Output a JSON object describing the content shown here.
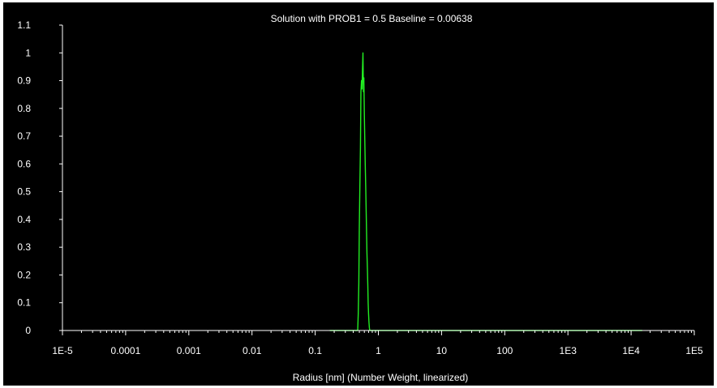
{
  "chart_data": {
    "type": "line",
    "title": "Solution with PROB1 = 0.5 Baseline = 0.00638",
    "xlabel": "Radius [nm] (Number Weight, linearized)",
    "ylabel": "",
    "x_scale": "log",
    "xlim": [
      1e-05,
      100000
    ],
    "ylim": [
      0,
      1.1
    ],
    "x_tick_values": [
      1e-05,
      0.0001,
      0.001,
      0.01,
      0.1,
      1,
      10,
      100,
      1000,
      10000,
      100000
    ],
    "x_tick_labels": [
      "1E-5",
      "0.0001",
      "0.001",
      "0.01",
      "0.1",
      "1",
      "10",
      "100",
      "1E3",
      "1E4",
      "1E5"
    ],
    "y_tick_values": [
      0,
      0.1,
      0.2,
      0.3,
      0.4,
      0.5,
      0.6,
      0.7,
      0.8,
      0.9,
      1,
      1.1
    ],
    "y_tick_labels": [
      "0",
      "0.1",
      "0.2",
      "0.3",
      "0.4",
      "0.5",
      "0.6",
      "0.7",
      "0.8",
      "0.9",
      "1",
      "1.1"
    ],
    "grid": false,
    "background": "#000000",
    "axis_color": "#ffffff",
    "text_color": "#ffffff",
    "series": [
      {
        "color": "#22ee22",
        "x": [
          0.17,
          0.47,
          0.48,
          0.49,
          0.5,
          0.51,
          0.52,
          0.53,
          0.54,
          0.55,
          0.56,
          0.57,
          0.58,
          0.59,
          0.6,
          0.61,
          0.62,
          0.63,
          0.64,
          0.65,
          0.66,
          0.67,
          0.68,
          0.69,
          0.7,
          0.71,
          0.72,
          0.73,
          0.75,
          15000
        ],
        "y": [
          0,
          0,
          0.06,
          0.17,
          0.37,
          0.52,
          0.66,
          0.86,
          0.9,
          0.87,
          0.94,
          1.0,
          0.86,
          0.91,
          0.78,
          0.68,
          0.6,
          0.52,
          0.44,
          0.36,
          0.28,
          0.22,
          0.16,
          0.1,
          0.06,
          0.03,
          0.01,
          0,
          0,
          0
        ]
      }
    ]
  }
}
